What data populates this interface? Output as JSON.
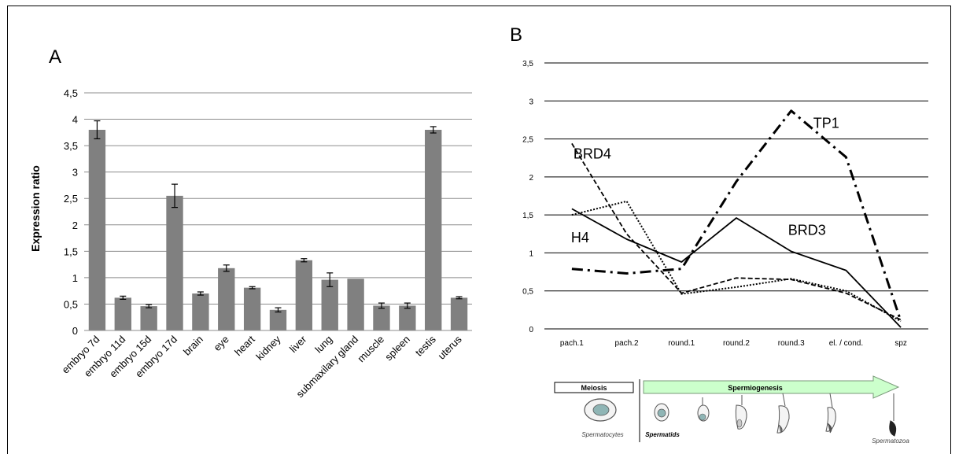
{
  "chart_data": [
    {
      "type": "bar",
      "panel_label": "A",
      "ylabel": "Expression ratio",
      "ylim": [
        0,
        4.5
      ],
      "yticks": [
        "0",
        "0,5",
        "1",
        "1,5",
        "2",
        "2,5",
        "3",
        "3,5",
        "4",
        "4,5"
      ],
      "ytick_values": [
        0,
        0.5,
        1,
        1.5,
        2,
        2.5,
        3,
        3.5,
        4,
        4.5
      ],
      "grid": true,
      "bar_color": "#808080",
      "categories": [
        "embryo 7d",
        "embryo 11d",
        "embryo 15d",
        "embryo 17d",
        "brain",
        "eye",
        "heart",
        "kidney",
        "liver",
        "lung",
        "submaxilary gland",
        "muscle",
        "spleen",
        "testis",
        "uterus"
      ],
      "values": [
        3.8,
        0.62,
        0.46,
        2.55,
        0.7,
        1.18,
        0.81,
        0.39,
        1.33,
        0.96,
        0.98,
        0.47,
        0.47,
        3.8,
        0.62
      ],
      "errors": [
        0.17,
        0.03,
        0.03,
        0.22,
        0.03,
        0.06,
        0.02,
        0.04,
        0.03,
        0.13,
        0,
        0.05,
        0.05,
        0.06,
        0.02
      ]
    },
    {
      "type": "line",
      "panel_label": "B",
      "ylim": [
        0,
        3.5
      ],
      "yticks": [
        "0",
        "0,5",
        "1",
        "1,5",
        "2",
        "2,5",
        "3",
        "3,5"
      ],
      "ytick_values": [
        0,
        0.5,
        1,
        1.5,
        2,
        2.5,
        3,
        3.5
      ],
      "grid": true,
      "categories": [
        "pach.1",
        "pach.2",
        "round.1",
        "round.2",
        "round.3",
        "el. / cond.",
        "spz"
      ],
      "series": [
        {
          "name": "H4",
          "style": "solid",
          "values": [
            1.58,
            1.18,
            0.88,
            1.46,
            1.02,
            0.77,
            0.02
          ]
        },
        {
          "name": "BRD4",
          "style": "dashed",
          "values": [
            2.44,
            1.25,
            0.47,
            0.67,
            0.65,
            0.47,
            0.12
          ]
        },
        {
          "name": "BRD3",
          "style": "dotted",
          "values": [
            1.5,
            1.68,
            0.46,
            0.55,
            0.66,
            0.5,
            0.1
          ]
        },
        {
          "name": "TP1",
          "style": "dashdot",
          "values": [
            0.79,
            0.73,
            0.79,
            1.94,
            2.87,
            2.26,
            0.1
          ]
        }
      ],
      "stage_diagram": {
        "meiosis_label": "Meiosis",
        "spermiogenesis_label": "Spermiogenesis",
        "spermatocytes_caption": "Spermatocytes",
        "spermatids_caption": "Spermatids",
        "spermatozoa_caption": "Spermatozoa",
        "arrow_color": "#ccffcc"
      }
    }
  ]
}
